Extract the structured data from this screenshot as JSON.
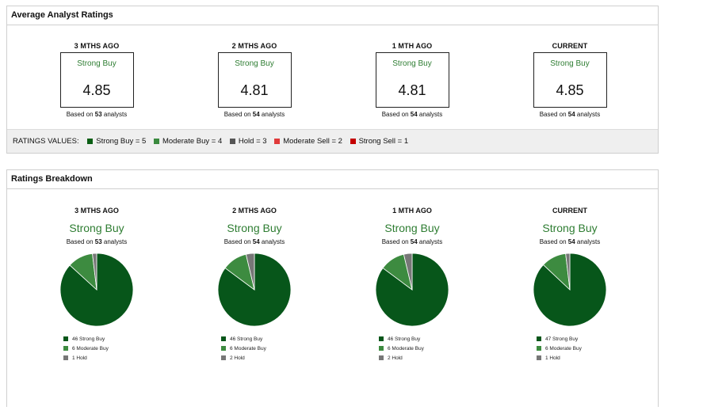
{
  "average_panel": {
    "title": "Average Analyst Ratings",
    "columns": [
      {
        "period": "3 MTHS AGO",
        "consensus": "Strong Buy",
        "score": "4.85",
        "based_prefix": "Based on",
        "analysts": "53",
        "based_suffix": "analysts"
      },
      {
        "period": "2 MTHS AGO",
        "consensus": "Strong Buy",
        "score": "4.81",
        "based_prefix": "Based on",
        "analysts": "54",
        "based_suffix": "analysts"
      },
      {
        "period": "1 MTH AGO",
        "consensus": "Strong Buy",
        "score": "4.81",
        "based_prefix": "Based on",
        "analysts": "54",
        "based_suffix": "analysts"
      },
      {
        "period": "CURRENT",
        "consensus": "Strong Buy",
        "score": "4.85",
        "based_prefix": "Based on",
        "analysts": "54",
        "based_suffix": "analysts"
      }
    ],
    "legend": {
      "title": "RATINGS VALUES:",
      "items": [
        {
          "label": "Strong Buy = 5",
          "color": "#0a5e14"
        },
        {
          "label": "Moderate Buy = 4",
          "color": "#3a8a3e"
        },
        {
          "label": "Hold = 3",
          "color": "#555555"
        },
        {
          "label": "Moderate Sell = 2",
          "color": "#e03a3a"
        },
        {
          "label": "Strong Sell = 1",
          "color": "#c40000"
        }
      ]
    }
  },
  "breakdown_panel": {
    "title": "Ratings Breakdown",
    "columns": [
      {
        "period": "3 MTHS AGO",
        "consensus": "Strong Buy",
        "based_prefix": "Based on",
        "analysts": "53",
        "based_suffix": "analysts",
        "slices": [
          {
            "label": "46 Strong Buy",
            "value": 46,
            "color": "#07561a"
          },
          {
            "label": "6 Moderate Buy",
            "value": 6,
            "color": "#3d8b40"
          },
          {
            "label": "1 Hold",
            "value": 1,
            "color": "#777777"
          }
        ]
      },
      {
        "period": "2 MTHS AGO",
        "consensus": "Strong Buy",
        "based_prefix": "Based on",
        "analysts": "54",
        "based_suffix": "analysts",
        "slices": [
          {
            "label": "46 Strong Buy",
            "value": 46,
            "color": "#07561a"
          },
          {
            "label": "6 Moderate Buy",
            "value": 6,
            "color": "#3d8b40"
          },
          {
            "label": "2 Hold",
            "value": 2,
            "color": "#777777"
          }
        ]
      },
      {
        "period": "1 MTH AGO",
        "consensus": "Strong Buy",
        "based_prefix": "Based on",
        "analysts": "54",
        "based_suffix": "analysts",
        "slices": [
          {
            "label": "46 Strong Buy",
            "value": 46,
            "color": "#07561a"
          },
          {
            "label": "6 Moderate Buy",
            "value": 6,
            "color": "#3d8b40"
          },
          {
            "label": "2 Hold",
            "value": 2,
            "color": "#777777"
          }
        ]
      },
      {
        "period": "CURRENT",
        "consensus": "Strong Buy",
        "based_prefix": "Based on",
        "analysts": "54",
        "based_suffix": "analysts",
        "slices": [
          {
            "label": "47 Strong Buy",
            "value": 47,
            "color": "#07561a"
          },
          {
            "label": "6 Moderate Buy",
            "value": 6,
            "color": "#3d8b40"
          },
          {
            "label": "1 Hold",
            "value": 1,
            "color": "#777777"
          }
        ]
      }
    ]
  },
  "chart_data": [
    {
      "type": "pie",
      "title": "3 MTHS AGO",
      "categories": [
        "Strong Buy",
        "Moderate Buy",
        "Hold"
      ],
      "values": [
        46,
        6,
        1
      ]
    },
    {
      "type": "pie",
      "title": "2 MTHS AGO",
      "categories": [
        "Strong Buy",
        "Moderate Buy",
        "Hold"
      ],
      "values": [
        46,
        6,
        2
      ]
    },
    {
      "type": "pie",
      "title": "1 MTH AGO",
      "categories": [
        "Strong Buy",
        "Moderate Buy",
        "Hold"
      ],
      "values": [
        46,
        6,
        2
      ]
    },
    {
      "type": "pie",
      "title": "CURRENT",
      "categories": [
        "Strong Buy",
        "Moderate Buy",
        "Hold"
      ],
      "values": [
        47,
        6,
        1
      ]
    }
  ]
}
